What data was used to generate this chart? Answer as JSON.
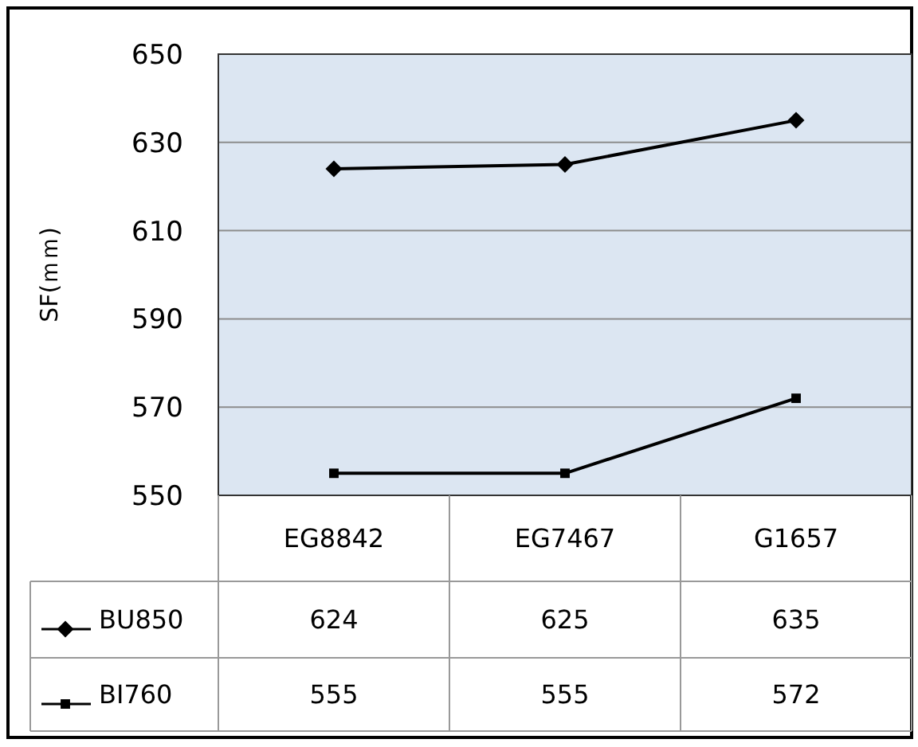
{
  "chart_data": {
    "type": "line",
    "ylabel": "SF(ｍｍ)",
    "categories": [
      "EG8842",
      "EG7467",
      "G1657"
    ],
    "series": [
      {
        "name": "BU850",
        "color": "#000000",
        "marker": "diamond",
        "values": [
          624,
          625,
          635
        ]
      },
      {
        "name": "BI760",
        "color": "#000000",
        "marker": "square",
        "values": [
          555,
          555,
          572
        ]
      }
    ],
    "ylim": [
      550,
      650
    ],
    "yticks": [
      550,
      570,
      590,
      610,
      630,
      650
    ],
    "grid": "y",
    "data_labels": true,
    "legend": "bottom",
    "line_style": "solid"
  }
}
